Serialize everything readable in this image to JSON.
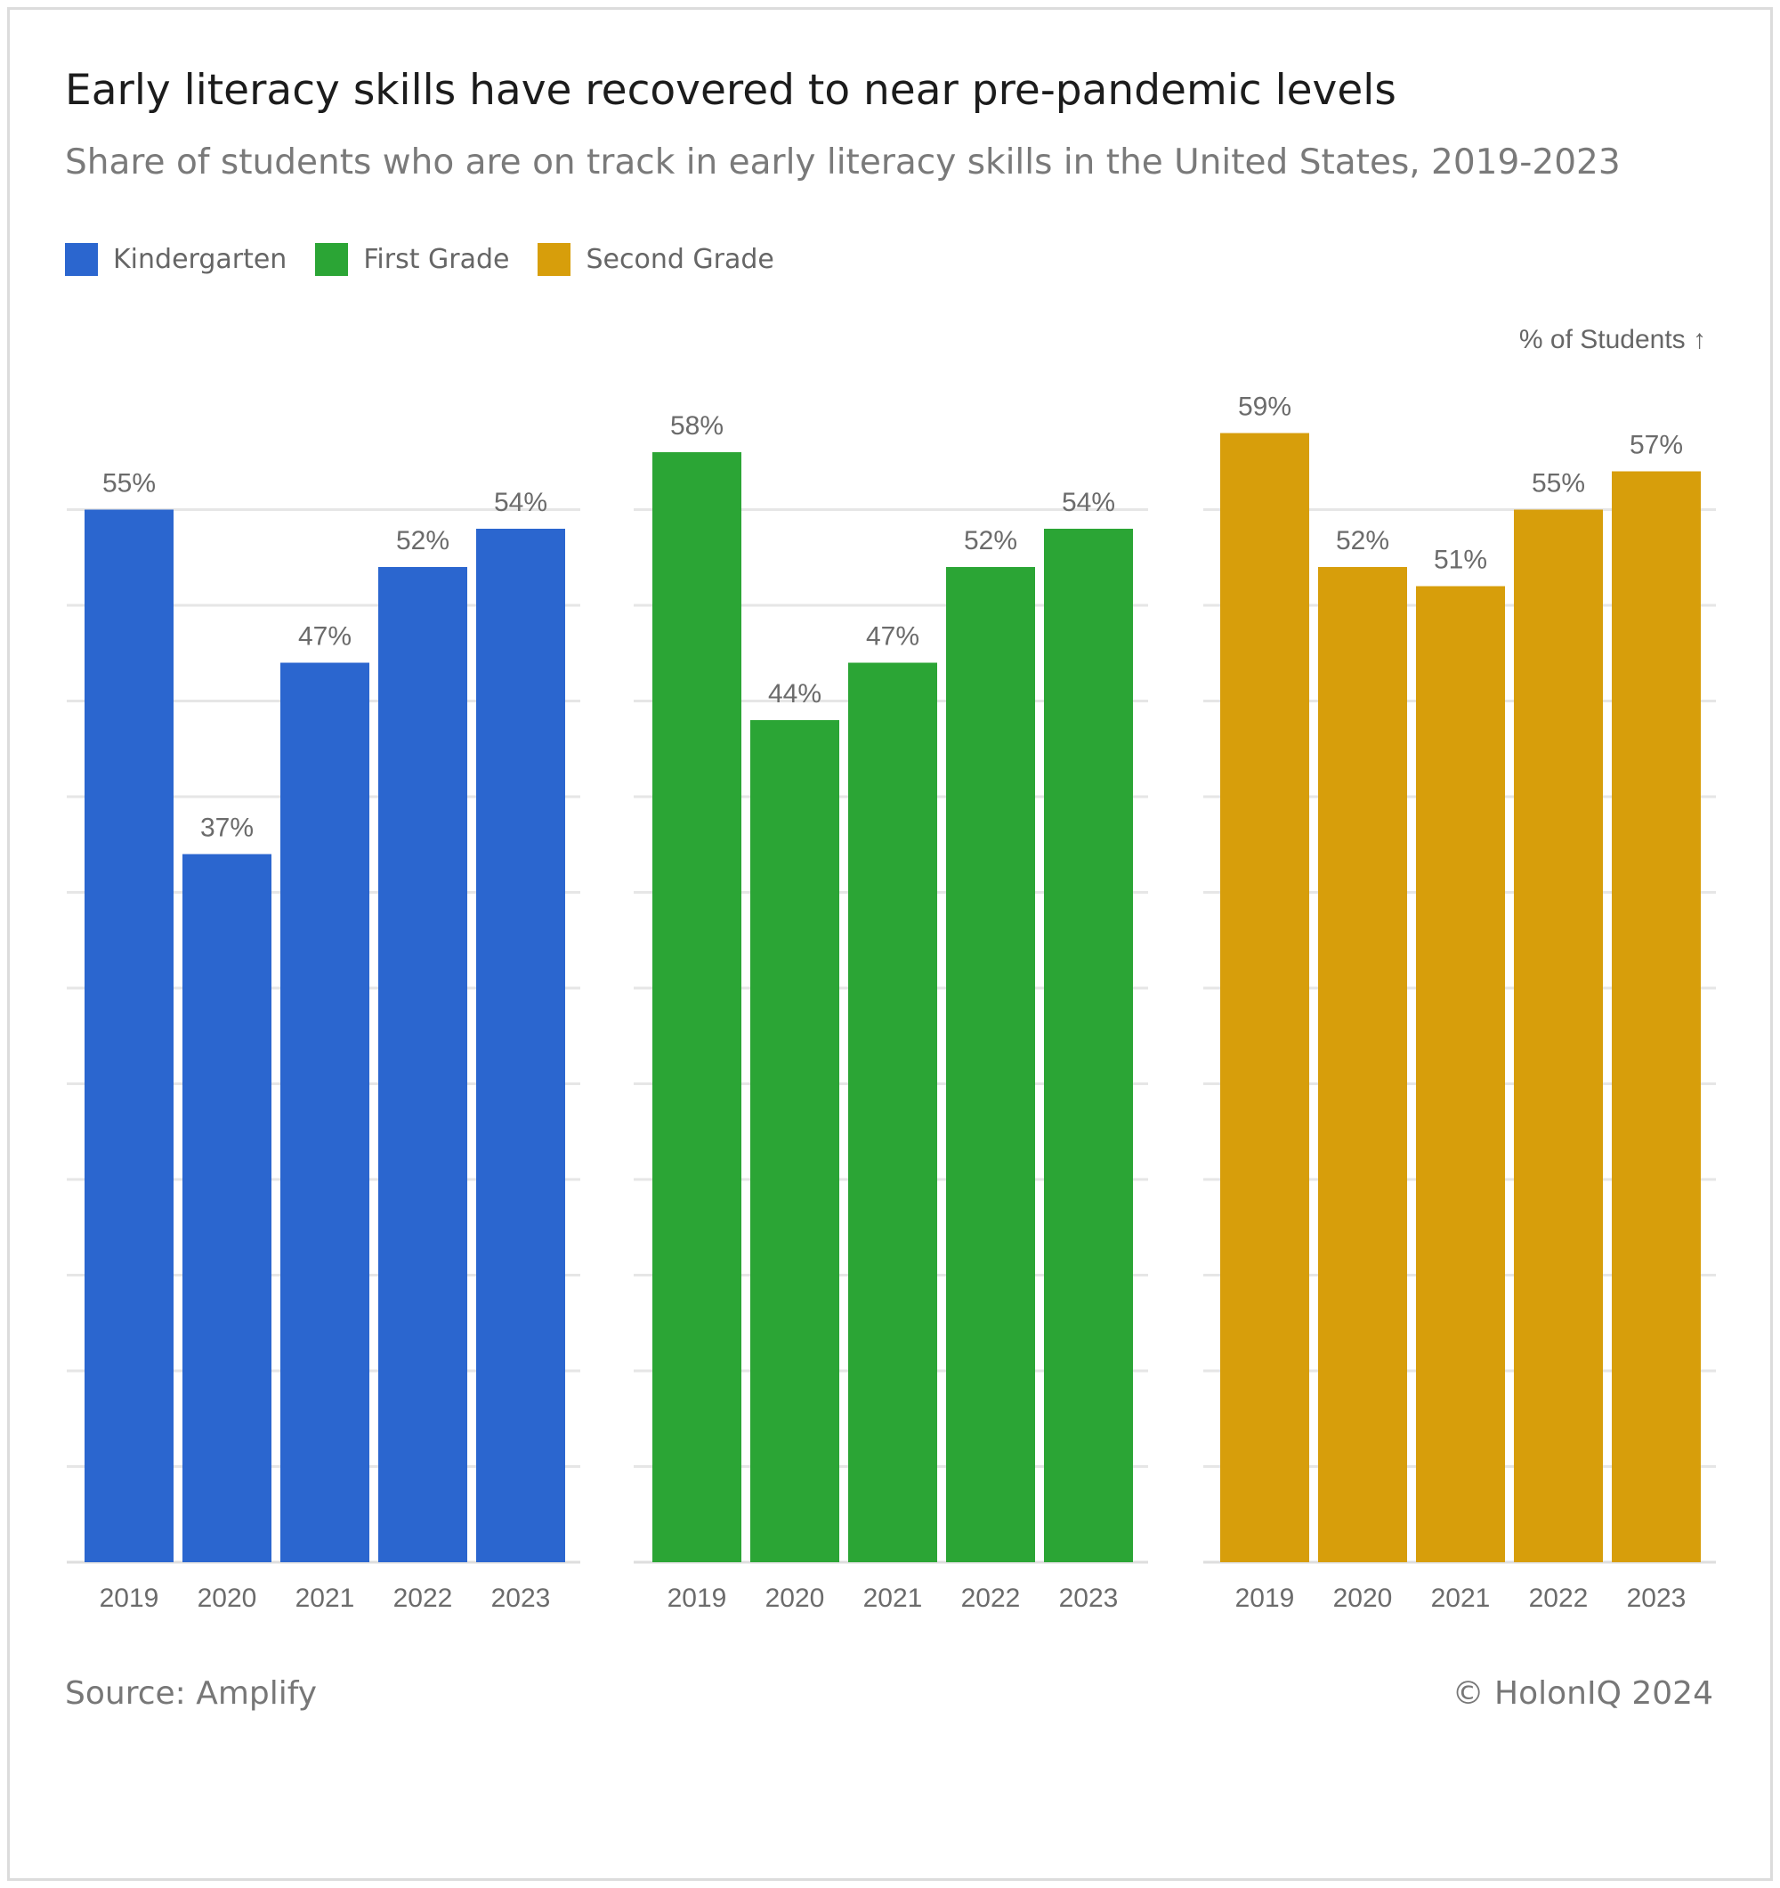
{
  "header": {
    "title": "Early literacy skills have recovered to near pre-pandemic levels",
    "subtitle": "Share of students who are on track in early literacy skills in the United States, 2019-2023"
  },
  "legend": [
    {
      "label": "Kindergarten",
      "color": "#2b66cf"
    },
    {
      "label": "First Grade",
      "color": "#2ba535"
    },
    {
      "label": "Second Grade",
      "color": "#d79e0b"
    }
  ],
  "unit_label": "% of Students ↑",
  "footer": {
    "source": "Source: Amplify",
    "copyright": "© HolonIQ 2024"
  },
  "chart_data": {
    "type": "bar",
    "categories": [
      "2019",
      "2020",
      "2021",
      "2022",
      "2023"
    ],
    "series": [
      {
        "name": "Kindergarten",
        "values": [
          55,
          37,
          47,
          52,
          54
        ],
        "labels": [
          "55%",
          "37%",
          "47%",
          "52%",
          "54%"
        ],
        "color": "#2b66cf"
      },
      {
        "name": "First Grade",
        "values": [
          58,
          44,
          47,
          52,
          54
        ],
        "labels": [
          "58%",
          "44%",
          "47%",
          "52%",
          "54%"
        ],
        "color": "#2ba535"
      },
      {
        "name": "Second Grade",
        "values": [
          59,
          52,
          51,
          55,
          57
        ],
        "labels": [
          "59%",
          "52%",
          "51%",
          "55%",
          "57%"
        ],
        "color": "#d79e0b"
      }
    ],
    "ylabel": "% of Students",
    "ylim": [
      0,
      60
    ],
    "gridline_step": 5,
    "grid": true,
    "legend_position": "top-left",
    "layout": "small-multiples"
  }
}
